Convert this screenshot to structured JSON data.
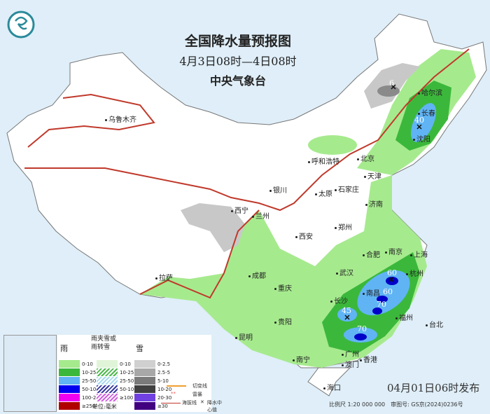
{
  "title": "全国降水量预报图",
  "period": "4月3日08时—4日08时",
  "issuer": "中央气象台",
  "logo_icon": "cma-logo-icon",
  "colors": {
    "sea": "#dfeef8",
    "land": "#ffffff",
    "rain_0_10": "#a6ea8e",
    "rain_10_25": "#3bb83b",
    "rain_25_50": "#60b4f4",
    "rain_50_100": "#0000f0",
    "rain_100_250": "#f000f0",
    "rain_250": "#b00000",
    "front": "#c0392b",
    "shear": "#f0a030"
  },
  "cities": [
    "乌鲁木齐",
    "拉萨",
    "西宁",
    "兰州",
    "银川",
    "呼和浩特",
    "北京",
    "天津",
    "太原",
    "石家庄",
    "济南",
    "郑州",
    "西安",
    "成都",
    "重庆",
    "贵阳",
    "昆明",
    "南宁",
    "广州",
    "澳门",
    "香港",
    "海口",
    "长沙",
    "武汉",
    "南昌",
    "合肥",
    "南京",
    "上海",
    "杭州",
    "福州",
    "台北",
    "哈尔滨",
    "长春",
    "沈阳"
  ],
  "center_values": [
    "60",
    "60",
    "70",
    "45",
    "70",
    "40",
    "6"
  ],
  "legend": {
    "rain_title": "雨",
    "rain": [
      "0-10",
      "10-25",
      "25-50",
      "50-100",
      "100-250",
      "≥250"
    ],
    "sleet_title": "雨夹雪或雨转雪",
    "sleet": [
      "0-10",
      "10-25",
      "25-50",
      "50-100",
      "≥100"
    ],
    "snow_title": "雪",
    "snow": [
      "0-2.5",
      "2.5-5",
      "5-10",
      "10-20",
      "20-30",
      "≥30"
    ],
    "unit": "单位:毫米",
    "shear_line": "切变线",
    "thunder": "雷暴",
    "contour": "海拔线",
    "center": "降水中心值"
  },
  "issue_time": "04月01日06时发布",
  "scale_text": "比例尺 1:20 000 000　审图号: GS京(2024)0236号"
}
